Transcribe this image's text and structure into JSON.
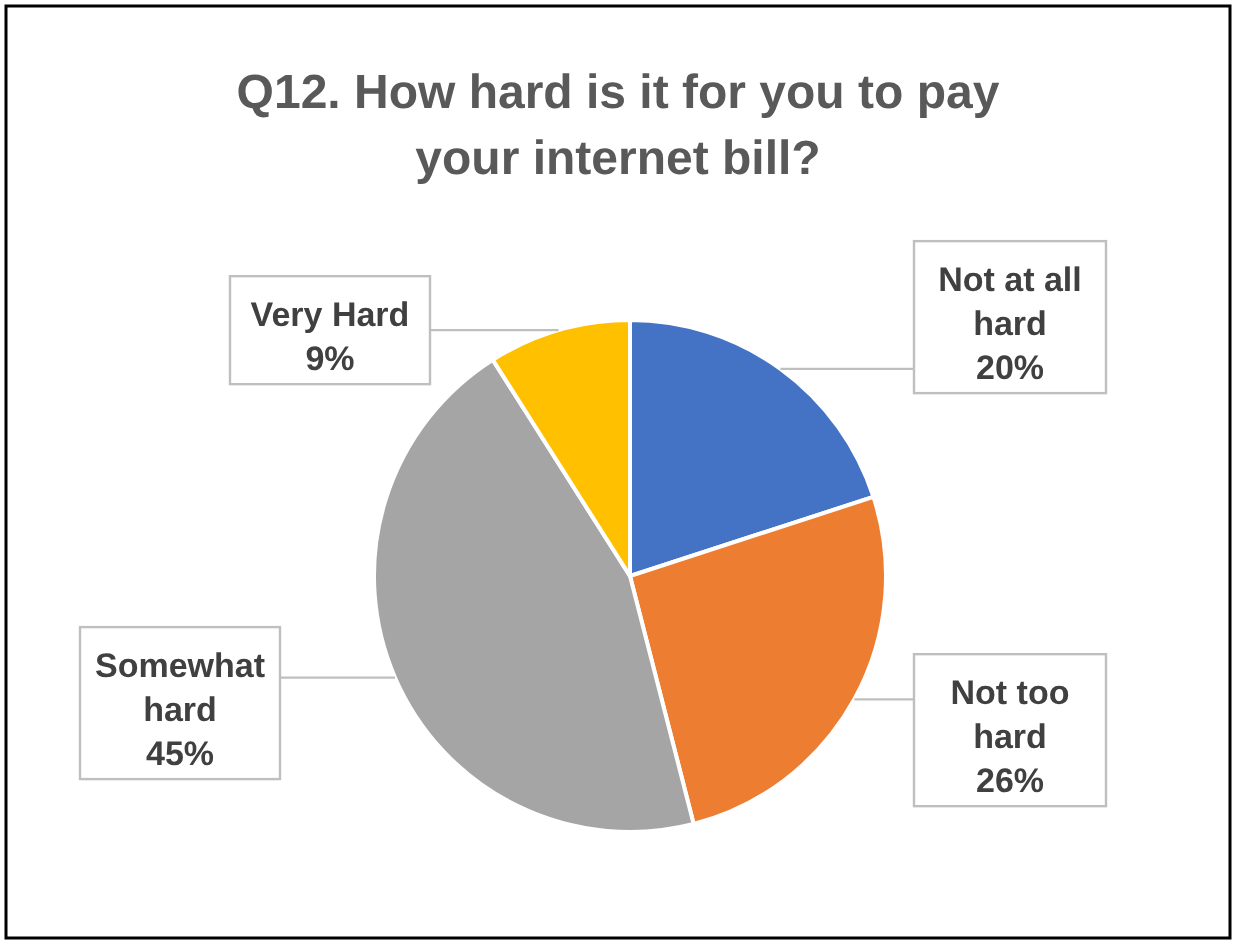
{
  "chart_data": {
    "type": "pie",
    "title": "Q12. How hard is it for you to pay your internet bill?",
    "categories": [
      "Not at all hard",
      "Not too hard",
      "Somewhat hard",
      "Very Hard"
    ],
    "values": [
      20,
      26,
      45,
      9
    ],
    "colors": [
      "#4472c4",
      "#ed7d31",
      "#a5a5a5",
      "#ffc000"
    ],
    "value_labels": [
      "20%",
      "26%",
      "45%",
      "9%"
    ]
  }
}
